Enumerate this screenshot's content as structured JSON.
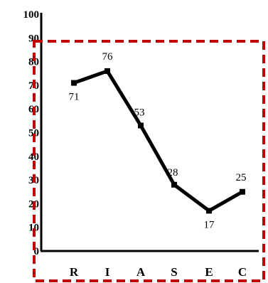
{
  "chart_data": {
    "type": "line",
    "categories": [
      "R",
      "I",
      "A",
      "S",
      "E",
      "C"
    ],
    "values": [
      71,
      76,
      53,
      28,
      17,
      25
    ],
    "data_labels": [
      "71",
      "76",
      "53",
      "28",
      "17",
      "25"
    ],
    "yticks": [
      "0",
      "10",
      "20",
      "30",
      "40",
      "50",
      "60",
      "70",
      "80",
      "90",
      "100"
    ],
    "ylim": [
      0,
      100
    ],
    "grid": false,
    "line_color": "#000000",
    "highlight_box_color": "#c00000"
  }
}
